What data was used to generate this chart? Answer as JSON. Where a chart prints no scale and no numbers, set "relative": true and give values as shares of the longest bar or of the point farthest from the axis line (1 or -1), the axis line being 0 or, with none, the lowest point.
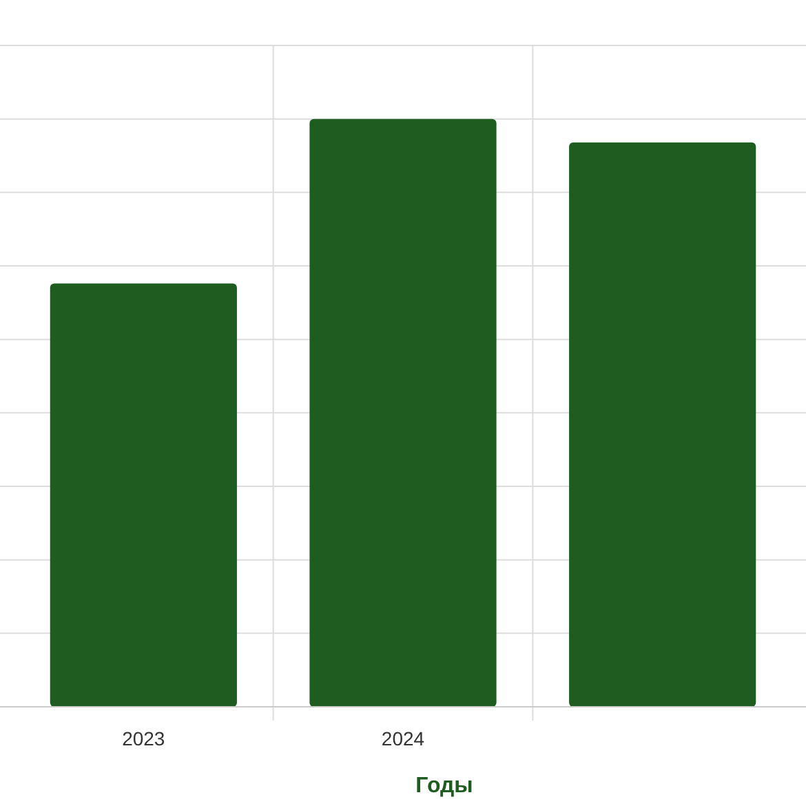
{
  "chart_data": {
    "type": "bar",
    "relative": true,
    "xlabel": "Годы",
    "categories": [
      "2023",
      "2024",
      null
    ],
    "values": [
      0.72,
      1,
      0.96
    ],
    "color": "#1e5c20",
    "grid": true
  }
}
